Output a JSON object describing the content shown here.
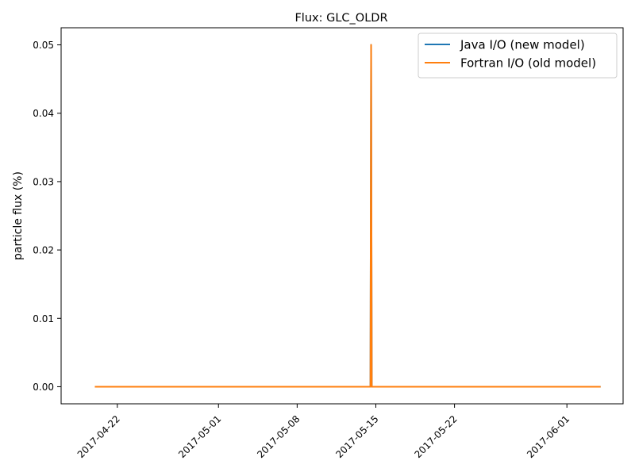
{
  "chart_data": {
    "type": "line",
    "title": "Flux: GLC_OLDR",
    "xlabel": "",
    "ylabel": "particle flux (%)",
    "x_tick_labels": [
      "2017-04-22",
      "2017-05-01",
      "2017-05-08",
      "2017-05-15",
      "2017-05-22",
      "2017-06-01"
    ],
    "y_tick_labels": [
      "0.00",
      "0.01",
      "0.02",
      "0.03",
      "0.04",
      "0.05"
    ],
    "xlim": [
      "2017-04-17",
      "2017-06-06"
    ],
    "ylim": [
      -0.0025,
      0.0525
    ],
    "grid": false,
    "legend_position": "top-right",
    "series": [
      {
        "name": "Java I/O (new model)",
        "color": "#1f77b4",
        "points": [
          [
            "2017-04-20",
            0.0
          ],
          [
            "2017-05-14",
            0.0
          ],
          [
            "2017-05-14",
            0.05
          ],
          [
            "2017-05-14",
            0.0
          ],
          [
            "2017-06-04",
            0.0
          ]
        ]
      },
      {
        "name": "Fortran I/O (old model)",
        "color": "#ff7f0e",
        "points": [
          [
            "2017-04-20",
            0.0
          ],
          [
            "2017-05-14",
            0.0
          ],
          [
            "2017-05-14",
            0.05
          ],
          [
            "2017-05-14",
            0.0
          ],
          [
            "2017-06-04",
            0.0
          ]
        ]
      }
    ]
  }
}
